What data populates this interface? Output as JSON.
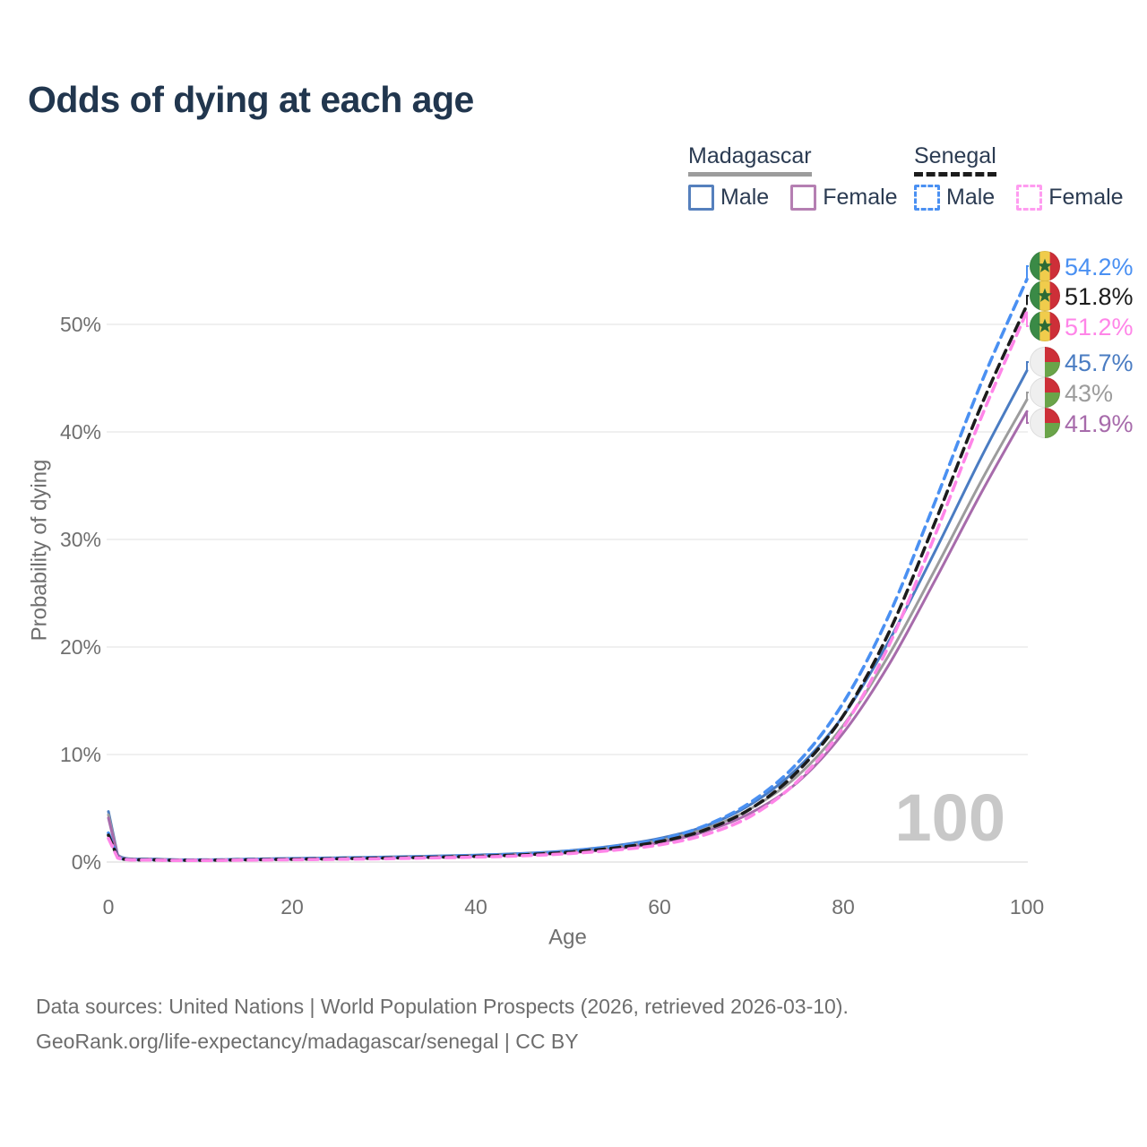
{
  "title": "Odds of dying at each age",
  "legend": {
    "groups": [
      {
        "name": "Madagascar",
        "line_style": "solid",
        "line_color": "#9c9c9c",
        "items": [
          {
            "label": "Male",
            "color": "#5580bd"
          },
          {
            "label": "Female",
            "color": "#b57fb2"
          }
        ]
      },
      {
        "name": "Senegal",
        "line_style": "dashed",
        "line_color": "#1c1c1c",
        "items": [
          {
            "label": "Male",
            "color": "#4a90f2"
          },
          {
            "label": "Female",
            "color": "#ff9cf0"
          }
        ]
      }
    ]
  },
  "chart_data": {
    "type": "line",
    "title": "Odds of dying at each age",
    "xlabel": "Age",
    "ylabel": "Probability of dying",
    "xlim": [
      0,
      100
    ],
    "ylim": [
      0,
      55
    ],
    "grid": "horizontal",
    "x_tick_values": [
      0,
      20,
      40,
      60,
      80,
      100
    ],
    "x_tick_labels": [
      "0",
      "20",
      "40",
      "60",
      "80",
      "100"
    ],
    "y_tick_values": [
      0,
      10,
      20,
      30,
      40,
      50
    ],
    "y_tick_labels": [
      "0%",
      "10%",
      "20%",
      "30%",
      "40%",
      "50%"
    ],
    "age_watermark": "100",
    "x": [
      0,
      1,
      5,
      10,
      15,
      20,
      25,
      30,
      35,
      40,
      45,
      50,
      55,
      60,
      65,
      70,
      75,
      80,
      85,
      90,
      95,
      100
    ],
    "series": [
      {
        "id": "madagascar-male",
        "name": "Madagascar Male",
        "country": "Madagascar",
        "sex": "Male",
        "dash": false,
        "color": "#4a7cc2",
        "end_label": "45.7%",
        "end_value": 45.7,
        "flag": "madagascar",
        "values": [
          4.7,
          0.65,
          0.28,
          0.22,
          0.27,
          0.34,
          0.4,
          0.47,
          0.55,
          0.65,
          0.8,
          1.05,
          1.5,
          2.2,
          3.35,
          5.4,
          8.7,
          13.6,
          20.6,
          28.9,
          37.6,
          45.7
        ]
      },
      {
        "id": "madagascar",
        "name": "Madagascar",
        "country": "Madagascar",
        "sex": "Both",
        "dash": false,
        "color": "#9c9c9c",
        "end_label": "43%",
        "end_value": 43.0,
        "flag": "madagascar",
        "values": [
          4.4,
          0.6,
          0.26,
          0.2,
          0.24,
          0.3,
          0.36,
          0.42,
          0.5,
          0.59,
          0.73,
          0.95,
          1.35,
          2.0,
          3.1,
          5.0,
          8.0,
          12.7,
          19.3,
          27.2,
          35.4,
          43.0
        ]
      },
      {
        "id": "madagascar-female",
        "name": "Madagascar Female",
        "country": "Madagascar",
        "sex": "Female",
        "dash": false,
        "color": "#a76bab",
        "end_label": "41.9%",
        "end_value": 41.9,
        "flag": "madagascar",
        "values": [
          4.1,
          0.55,
          0.24,
          0.19,
          0.22,
          0.27,
          0.32,
          0.38,
          0.45,
          0.53,
          0.66,
          0.86,
          1.2,
          1.8,
          2.85,
          4.6,
          7.4,
          12.0,
          18.4,
          26.2,
          34.3,
          41.9
        ]
      },
      {
        "id": "senegal-male",
        "name": "Senegal Male",
        "country": "Senegal",
        "sex": "Male",
        "dash": true,
        "color": "#4a90f2",
        "end_label": "54.2%",
        "end_value": 54.2,
        "flag": "senegal",
        "values": [
          2.7,
          0.45,
          0.22,
          0.19,
          0.24,
          0.3,
          0.36,
          0.42,
          0.5,
          0.6,
          0.75,
          1.0,
          1.45,
          2.1,
          3.4,
          5.6,
          9.2,
          14.8,
          23.0,
          33.5,
          44.5,
          54.2
        ]
      },
      {
        "id": "senegal",
        "name": "Senegal",
        "country": "Senegal",
        "sex": "Both",
        "dash": true,
        "color": "#1c1c1c",
        "end_label": "51.8%",
        "end_value": 51.8,
        "flag": "senegal",
        "values": [
          2.5,
          0.42,
          0.2,
          0.17,
          0.21,
          0.26,
          0.31,
          0.37,
          0.44,
          0.53,
          0.67,
          0.9,
          1.3,
          1.9,
          3.0,
          5.0,
          8.4,
          13.6,
          21.4,
          31.6,
          42.4,
          51.8
        ]
      },
      {
        "id": "senegal-female",
        "name": "Senegal Female",
        "country": "Senegal",
        "sex": "Female",
        "dash": true,
        "color": "#ff85e8",
        "end_label": "51.2%",
        "end_value": 51.2,
        "flag": "senegal",
        "values": [
          2.2,
          0.38,
          0.18,
          0.15,
          0.18,
          0.22,
          0.26,
          0.31,
          0.38,
          0.46,
          0.58,
          0.78,
          1.1,
          1.6,
          2.55,
          4.3,
          7.5,
          12.5,
          20.2,
          30.4,
          41.3,
          51.2
        ]
      }
    ]
  },
  "flags": {
    "senegal": {
      "green": "#3a8a46",
      "yellow": "#f0cc4c",
      "red": "#cd2f38",
      "star": "#2c6b36"
    },
    "madagascar": {
      "white": "#efefef",
      "red": "#cd2f38",
      "green": "#6aa449"
    }
  },
  "colors": {
    "title_text": "#21364e",
    "axis_text": "#6f6f6f",
    "gridline": "#ececec",
    "baseline": "#e3e3e3",
    "watermark": "#c8c8c8",
    "footer_text": "#6d6d6d"
  },
  "footer": {
    "line1": "Data sources: United Nations | World Population Prospects (2026, retrieved 2026-03-10).",
    "line2": "GeoRank.org/life-expectancy/madagascar/senegal | CC BY"
  }
}
